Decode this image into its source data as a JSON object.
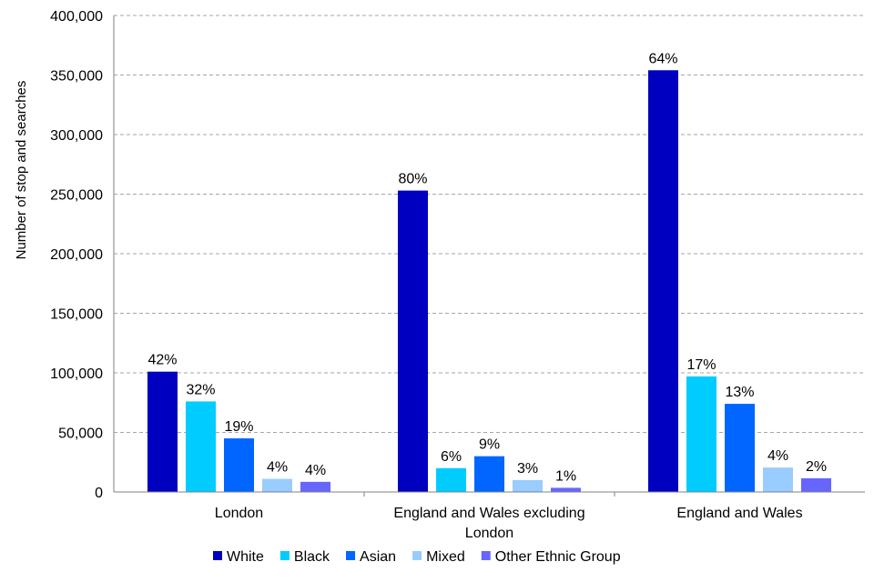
{
  "chart_data": {
    "type": "bar",
    "title": "",
    "xlabel": "",
    "ylabel": "Number of stop and searches",
    "ylim": [
      0,
      400000
    ],
    "yticks": [
      0,
      50000,
      100000,
      150000,
      200000,
      250000,
      300000,
      350000,
      400000
    ],
    "ytick_labels": [
      "0",
      "50,000",
      "100,000",
      "150,000",
      "200,000",
      "250,000",
      "300,000",
      "350,000",
      "400,000"
    ],
    "grid": true,
    "legend_position": "bottom",
    "categories": [
      {
        "lines": [
          "London"
        ]
      },
      {
        "lines": [
          "England and Wales excluding",
          "London"
        ]
      },
      {
        "lines": [
          "England and Wales"
        ]
      }
    ],
    "series": [
      {
        "name": "White",
        "color": "#0000C0",
        "values": [
          101000,
          253000,
          354000
        ],
        "labels": [
          "42%",
          "80%",
          "64%"
        ]
      },
      {
        "name": "Black",
        "color": "#00CCFF",
        "values": [
          76000,
          20000,
          97000
        ],
        "labels": [
          "32%",
          "6%",
          "17%"
        ]
      },
      {
        "name": "Asian",
        "color": "#0066FF",
        "values": [
          45000,
          30000,
          74000
        ],
        "labels": [
          "19%",
          "9%",
          "13%"
        ]
      },
      {
        "name": "Mixed",
        "color": "#99CCFF",
        "values": [
          11000,
          10000,
          20500
        ],
        "labels": [
          "4%",
          "3%",
          "4%"
        ]
      },
      {
        "name": "Other Ethnic Group",
        "color": "#6666FF",
        "values": [
          8500,
          3500,
          11500
        ],
        "labels": [
          "4%",
          "1%",
          "2%"
        ]
      }
    ]
  }
}
